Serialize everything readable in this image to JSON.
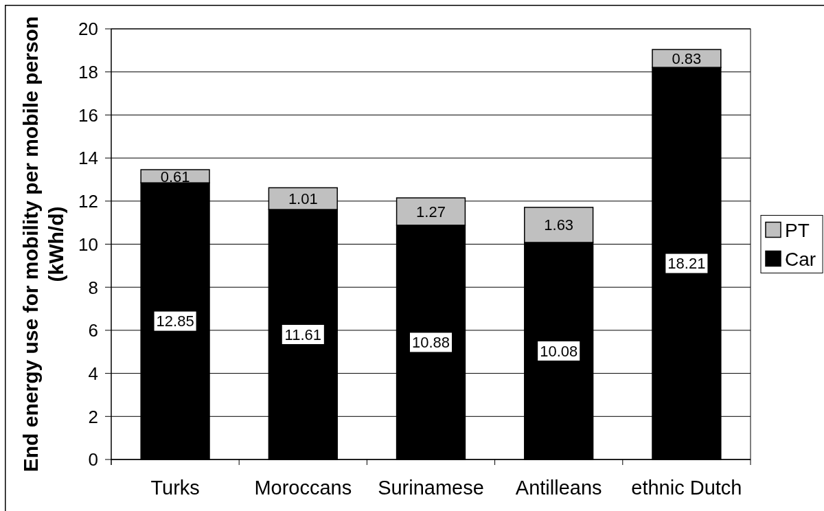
{
  "chart_data": {
    "type": "bar",
    "categories": [
      "Turks",
      "Moroccans",
      "Surinamese",
      "Antilleans",
      "ethnic Dutch"
    ],
    "series": [
      {
        "name": "Car",
        "color": "#000000",
        "values": [
          12.85,
          11.61,
          10.88,
          10.08,
          18.21
        ]
      },
      {
        "name": "PT",
        "color": "#c0c0c0",
        "values": [
          0.61,
          1.01,
          1.27,
          1.63,
          0.83
        ]
      }
    ],
    "stacked": true,
    "ylabel": "End energy use for mobility per mobile person\n(kWh/d)",
    "ylim": [
      0,
      20
    ],
    "yticks": [
      0,
      2,
      4,
      6,
      8,
      10,
      12,
      14,
      16,
      18,
      20
    ],
    "grid": "y",
    "legend": "right",
    "data_labels": true
  }
}
